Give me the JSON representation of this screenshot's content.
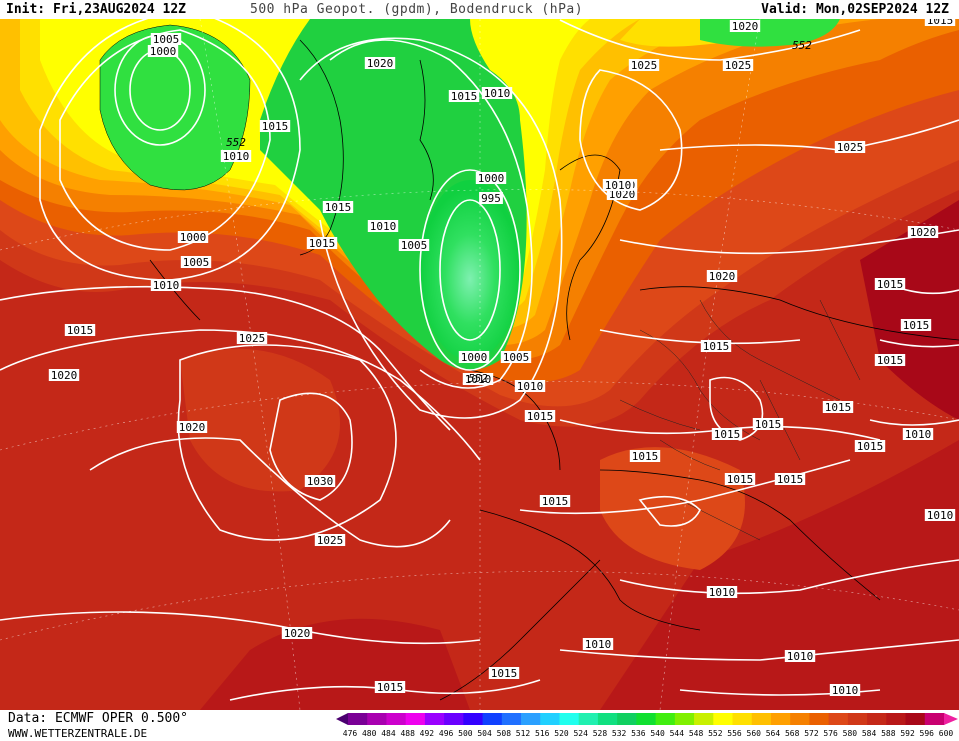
{
  "header": {
    "init": "Init: Fri,23AUG2024 12Z",
    "title": "500 hPa Geopot. (gpdm), Bodendruck (hPa)",
    "valid": "Valid: Mon,02SEP2024 12Z"
  },
  "footer": {
    "source": "Data: ECMWF OPER 0.500°",
    "website": "WWW.WETTERZENTRALE.DE"
  },
  "legend": {
    "values": [
      "476",
      "480",
      "484",
      "488",
      "492",
      "496",
      "500",
      "504",
      "508",
      "512",
      "516",
      "520",
      "524",
      "528",
      "532",
      "536",
      "540",
      "544",
      "548",
      "552",
      "556",
      "560",
      "564",
      "568",
      "572",
      "576",
      "580",
      "584",
      "588",
      "592",
      "596",
      "600"
    ],
    "colors": [
      "#4b0070",
      "#7a0096",
      "#a800b0",
      "#cc00cc",
      "#ee00ee",
      "#9a00ff",
      "#6a00ff",
      "#3300ff",
      "#1040ff",
      "#2070ff",
      "#2aa0ff",
      "#20d0ff",
      "#20ffee",
      "#20f0b0",
      "#10e080",
      "#10d060",
      "#10e030",
      "#40ee10",
      "#80f000",
      "#c8f000",
      "#ffff00",
      "#ffe000",
      "#ffc000",
      "#ffa000",
      "#f58000",
      "#ea6000",
      "#dd4818",
      "#d03818",
      "#c42818",
      "#b81818",
      "#a80818",
      "#c80070",
      "#ee20a0"
    ]
  },
  "isobar_labels": [
    {
      "text": "1005",
      "id": "a"
    },
    {
      "text": "1000",
      "id": "b"
    },
    {
      "text": "1020",
      "id": "c"
    },
    {
      "text": "1015",
      "id": "d"
    },
    {
      "text": "1010",
      "id": "e"
    },
    {
      "text": "1015",
      "id": "f"
    },
    {
      "text": "1010",
      "id": "g"
    },
    {
      "text": "1000",
      "id": "h"
    },
    {
      "text": "1005",
      "id": "i"
    },
    {
      "text": "1010",
      "id": "j"
    },
    {
      "text": "1015",
      "id": "k"
    },
    {
      "text": "1015",
      "id": "l"
    },
    {
      "text": "1010",
      "id": "m"
    },
    {
      "text": "1000",
      "id": "n"
    },
    {
      "text": "995",
      "id": "o"
    },
    {
      "text": "1005",
      "id": "p"
    },
    {
      "text": "1010",
      "id": "q"
    },
    {
      "text": "1015",
      "id": "r"
    },
    {
      "text": "1020",
      "id": "s"
    },
    {
      "text": "1025",
      "id": "t"
    },
    {
      "text": "1025",
      "id": "u"
    },
    {
      "text": "1020",
      "id": "v"
    },
    {
      "text": "1020",
      "id": "w"
    },
    {
      "text": "1025",
      "id": "x"
    },
    {
      "text": "1020",
      "id": "y"
    },
    {
      "text": "1020",
      "id": "z"
    },
    {
      "text": "1015",
      "id": "aa"
    },
    {
      "text": "1015",
      "id": "ab"
    },
    {
      "text": "1015",
      "id": "ac"
    },
    {
      "text": "1015",
      "id": "ad"
    },
    {
      "text": "1020",
      "id": "ae"
    },
    {
      "text": "1025",
      "id": "af"
    },
    {
      "text": "1020",
      "id": "ag"
    },
    {
      "text": "1030",
      "id": "ah"
    },
    {
      "text": "1025",
      "id": "ai"
    },
    {
      "text": "1020",
      "id": "aj"
    },
    {
      "text": "1015",
      "id": "ak"
    },
    {
      "text": "1000",
      "id": "al"
    },
    {
      "text": "1005",
      "id": "am"
    },
    {
      "text": "1010",
      "id": "an"
    },
    {
      "text": "1015",
      "id": "ao"
    },
    {
      "text": "1015",
      "id": "ap"
    },
    {
      "text": "1015",
      "id": "aq"
    },
    {
      "text": "1015",
      "id": "ar"
    },
    {
      "text": "1015",
      "id": "as"
    },
    {
      "text": "1010",
      "id": "at"
    },
    {
      "text": "1015",
      "id": "au"
    },
    {
      "text": "1015",
      "id": "av"
    },
    {
      "text": "1015",
      "id": "aw"
    },
    {
      "text": "1010",
      "id": "ax"
    },
    {
      "text": "1010",
      "id": "ay"
    },
    {
      "text": "1010",
      "id": "az"
    },
    {
      "text": "1010",
      "id": "ba"
    },
    {
      "text": "1015",
      "id": "bb"
    },
    {
      "text": "1015",
      "id": "bc"
    },
    {
      "text": "1010",
      "id": "bd"
    },
    {
      "text": "1010",
      "id": "be"
    },
    {
      "text": "1015",
      "id": "bf"
    }
  ],
  "contour_labels": [
    {
      "text": "552",
      "id": "c1"
    },
    {
      "text": "552",
      "id": "c2"
    },
    {
      "text": "552",
      "id": "c3"
    }
  ]
}
